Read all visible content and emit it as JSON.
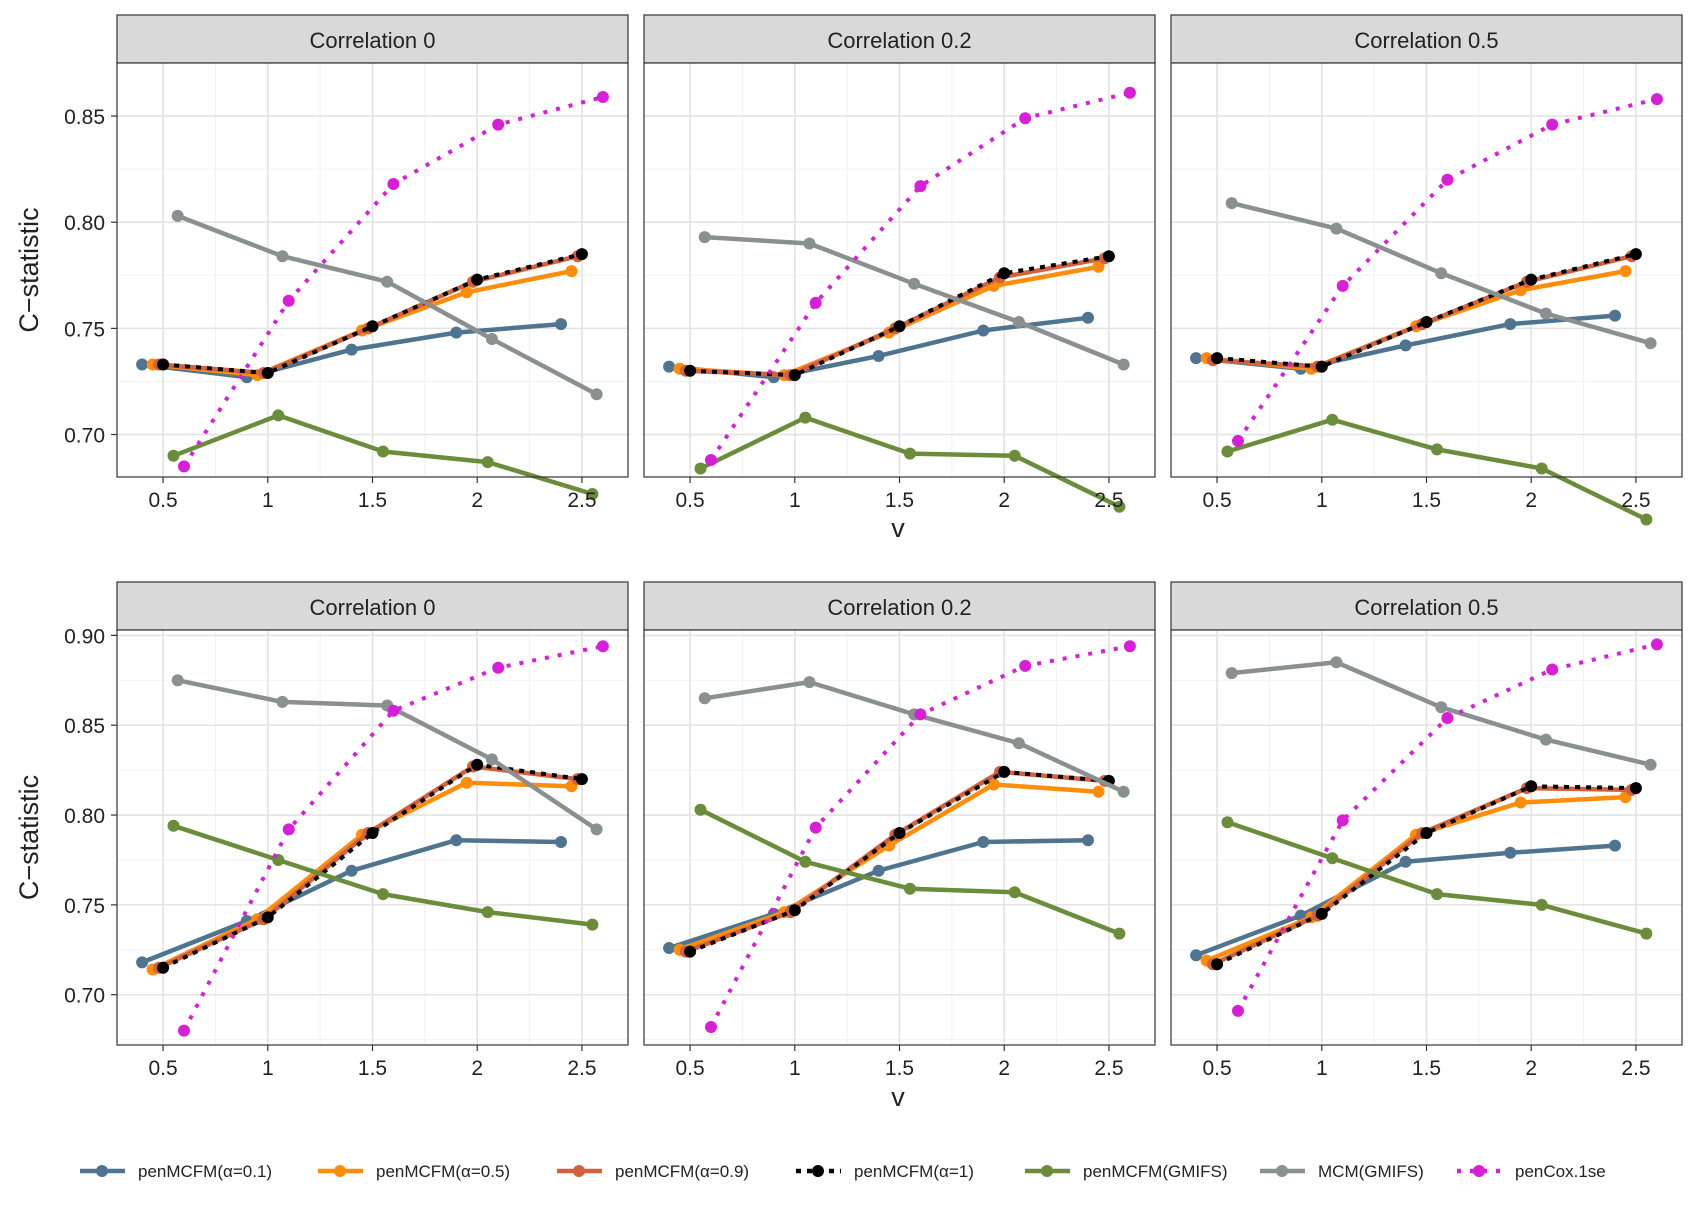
{
  "chart_data": {
    "type": "line",
    "x_values": [
      0.5,
      1,
      1.5,
      2,
      2.5
    ],
    "xlabel": "v",
    "ylabel": "C−statistic",
    "xticks": [
      "0.5",
      "1",
      "1.5",
      "2",
      "2.5"
    ],
    "series_styles": [
      {
        "name": "penMCFM(α=0.1)",
        "color": "#4e7490",
        "dash": "solid"
      },
      {
        "name": "penMCFM(α=0.5)",
        "color": "#ff8c0a",
        "dash": "solid"
      },
      {
        "name": "penMCFM(α=0.9)",
        "color": "#d4613e",
        "dash": "solid"
      },
      {
        "name": "penMCFM(α=1)",
        "color": "#000000",
        "dash": "dotted"
      },
      {
        "name": "penMCFM(GMIFS)",
        "color": "#6b8c3a",
        "dash": "solid"
      },
      {
        "name": "MCM(GMIFS)",
        "color": "#8a8f8f",
        "dash": "solid"
      },
      {
        "name": "penCox.1se",
        "color": "#d81fd8",
        "dash": "dotted"
      }
    ],
    "rows": [
      {
        "ylim": [
          0.68,
          0.875
        ],
        "yticks": [
          "0.70",
          "0.75",
          "0.80",
          "0.85"
        ],
        "panels": [
          {
            "title": "Correlation 0",
            "series": [
              {
                "name": "penMCFM(α=0.1)",
                "x": [
                  0.4,
                  0.9,
                  1.4,
                  1.9,
                  2.4
                ],
                "values": [
                  0.733,
                  0.727,
                  0.74,
                  0.748,
                  0.752
                ]
              },
              {
                "name": "penMCFM(α=0.5)",
                "x": [
                  0.45,
                  0.95,
                  1.45,
                  1.95,
                  2.45
                ],
                "values": [
                  0.733,
                  0.728,
                  0.749,
                  0.767,
                  0.777
                ]
              },
              {
                "name": "penMCFM(α=0.9)",
                "x": [
                  0.48,
                  0.98,
                  1.48,
                  1.98,
                  2.48
                ],
                "values": [
                  0.733,
                  0.729,
                  0.75,
                  0.772,
                  0.784
                ]
              },
              {
                "name": "penMCFM(α=1)",
                "x": [
                  0.5,
                  1.0,
                  1.5,
                  2.0,
                  2.5
                ],
                "values": [
                  0.733,
                  0.729,
                  0.751,
                  0.773,
                  0.785
                ]
              },
              {
                "name": "penMCFM(GMIFS)",
                "x": [
                  0.55,
                  1.05,
                  1.55,
                  2.05,
                  2.55
                ],
                "values": [
                  0.69,
                  0.709,
                  0.692,
                  0.687,
                  0.672
                ]
              },
              {
                "name": "MCM(GMIFS)",
                "x": [
                  0.57,
                  1.07,
                  1.57,
                  2.07,
                  2.57
                ],
                "values": [
                  0.803,
                  0.784,
                  0.772,
                  0.745,
                  0.719
                ]
              },
              {
                "name": "penCox.1se",
                "x": [
                  0.6,
                  1.1,
                  1.6,
                  2.1,
                  2.6
                ],
                "values": [
                  0.685,
                  0.763,
                  0.818,
                  0.846,
                  0.859
                ]
              }
            ]
          },
          {
            "title": "Correlation 0.2",
            "series": [
              {
                "name": "penMCFM(α=0.1)",
                "x": [
                  0.4,
                  0.9,
                  1.4,
                  1.9,
                  2.4
                ],
                "values": [
                  0.732,
                  0.727,
                  0.737,
                  0.749,
                  0.755
                ]
              },
              {
                "name": "penMCFM(α=0.5)",
                "x": [
                  0.45,
                  0.95,
                  1.45,
                  1.95,
                  2.45
                ],
                "values": [
                  0.731,
                  0.728,
                  0.748,
                  0.77,
                  0.779
                ]
              },
              {
                "name": "penMCFM(α=0.9)",
                "x": [
                  0.48,
                  0.98,
                  1.48,
                  1.98,
                  2.48
                ],
                "values": [
                  0.73,
                  0.728,
                  0.75,
                  0.774,
                  0.783
                ]
              },
              {
                "name": "penMCFM(α=1)",
                "x": [
                  0.5,
                  1.0,
                  1.5,
                  2.0,
                  2.5
                ],
                "values": [
                  0.73,
                  0.728,
                  0.751,
                  0.776,
                  0.784
                ]
              },
              {
                "name": "penMCFM(GMIFS)",
                "x": [
                  0.55,
                  1.05,
                  1.55,
                  2.05,
                  2.55
                ],
                "values": [
                  0.684,
                  0.708,
                  0.691,
                  0.69,
                  0.666
                ]
              },
              {
                "name": "MCM(GMIFS)",
                "x": [
                  0.57,
                  1.07,
                  1.57,
                  2.07,
                  2.57
                ],
                "values": [
                  0.793,
                  0.79,
                  0.771,
                  0.753,
                  0.733
                ]
              },
              {
                "name": "penCox.1se",
                "x": [
                  0.6,
                  1.1,
                  1.6,
                  2.1,
                  2.6
                ],
                "values": [
                  0.688,
                  0.762,
                  0.817,
                  0.849,
                  0.861
                ]
              }
            ]
          },
          {
            "title": "Correlation 0.5",
            "series": [
              {
                "name": "penMCFM(α=0.1)",
                "x": [
                  0.4,
                  0.9,
                  1.4,
                  1.9,
                  2.4
                ],
                "values": [
                  0.736,
                  0.731,
                  0.742,
                  0.752,
                  0.756
                ]
              },
              {
                "name": "penMCFM(α=0.5)",
                "x": [
                  0.45,
                  0.95,
                  1.45,
                  1.95,
                  2.45
                ],
                "values": [
                  0.736,
                  0.731,
                  0.751,
                  0.768,
                  0.777
                ]
              },
              {
                "name": "penMCFM(α=0.9)",
                "x": [
                  0.48,
                  0.98,
                  1.48,
                  1.98,
                  2.48
                ],
                "values": [
                  0.735,
                  0.732,
                  0.752,
                  0.772,
                  0.784
                ]
              },
              {
                "name": "penMCFM(α=1)",
                "x": [
                  0.5,
                  1.0,
                  1.5,
                  2.0,
                  2.5
                ],
                "values": [
                  0.736,
                  0.732,
                  0.753,
                  0.773,
                  0.785
                ]
              },
              {
                "name": "penMCFM(GMIFS)",
                "x": [
                  0.55,
                  1.05,
                  1.55,
                  2.05,
                  2.55
                ],
                "values": [
                  0.692,
                  0.707,
                  0.693,
                  0.684,
                  0.66
                ]
              },
              {
                "name": "MCM(GMIFS)",
                "x": [
                  0.57,
                  1.07,
                  1.57,
                  2.07,
                  2.57
                ],
                "values": [
                  0.809,
                  0.797,
                  0.776,
                  0.757,
                  0.743
                ]
              },
              {
                "name": "penCox.1se",
                "x": [
                  0.6,
                  1.1,
                  1.6,
                  2.1,
                  2.6
                ],
                "values": [
                  0.697,
                  0.77,
                  0.82,
                  0.846,
                  0.858
                ]
              }
            ]
          }
        ]
      },
      {
        "ylim": [
          0.672,
          0.903
        ],
        "yticks": [
          "0.70",
          "0.75",
          "0.80",
          "0.85",
          "0.90"
        ],
        "panels": [
          {
            "title": "Correlation 0",
            "series": [
              {
                "name": "penMCFM(α=0.1)",
                "x": [
                  0.4,
                  0.9,
                  1.4,
                  1.9,
                  2.4
                ],
                "values": [
                  0.718,
                  0.741,
                  0.769,
                  0.786,
                  0.785
                ]
              },
              {
                "name": "penMCFM(α=0.5)",
                "x": [
                  0.45,
                  0.95,
                  1.45,
                  1.95,
                  2.45
                ],
                "values": [
                  0.714,
                  0.742,
                  0.789,
                  0.818,
                  0.816
                ]
              },
              {
                "name": "penMCFM(α=0.9)",
                "x": [
                  0.48,
                  0.98,
                  1.48,
                  1.98,
                  2.48
                ],
                "values": [
                  0.715,
                  0.742,
                  0.79,
                  0.827,
                  0.82
                ]
              },
              {
                "name": "penMCFM(α=1)",
                "x": [
                  0.5,
                  1.0,
                  1.5,
                  2.0,
                  2.5
                ],
                "values": [
                  0.715,
                  0.743,
                  0.79,
                  0.828,
                  0.82
                ]
              },
              {
                "name": "penMCFM(GMIFS)",
                "x": [
                  0.55,
                  1.05,
                  1.55,
                  2.05,
                  2.55
                ],
                "values": [
                  0.794,
                  0.775,
                  0.756,
                  0.746,
                  0.739
                ]
              },
              {
                "name": "MCM(GMIFS)",
                "x": [
                  0.57,
                  1.07,
                  1.57,
                  2.07,
                  2.57
                ],
                "values": [
                  0.875,
                  0.863,
                  0.861,
                  0.831,
                  0.792
                ]
              },
              {
                "name": "penCox.1se",
                "x": [
                  0.6,
                  1.1,
                  1.6,
                  2.1,
                  2.6
                ],
                "values": [
                  0.68,
                  0.792,
                  0.858,
                  0.882,
                  0.894
                ]
              }
            ]
          },
          {
            "title": "Correlation 0.2",
            "series": [
              {
                "name": "penMCFM(α=0.1)",
                "x": [
                  0.4,
                  0.9,
                  1.4,
                  1.9,
                  2.4
                ],
                "values": [
                  0.726,
                  0.745,
                  0.769,
                  0.785,
                  0.786
                ]
              },
              {
                "name": "penMCFM(α=0.5)",
                "x": [
                  0.45,
                  0.95,
                  1.45,
                  1.95,
                  2.45
                ],
                "values": [
                  0.725,
                  0.746,
                  0.783,
                  0.817,
                  0.813
                ]
              },
              {
                "name": "penMCFM(α=0.9)",
                "x": [
                  0.48,
                  0.98,
                  1.48,
                  1.98,
                  2.48
                ],
                "values": [
                  0.724,
                  0.746,
                  0.789,
                  0.824,
                  0.819
                ]
              },
              {
                "name": "penMCFM(α=1)",
                "x": [
                  0.5,
                  1.0,
                  1.5,
                  2.0,
                  2.5
                ],
                "values": [
                  0.724,
                  0.747,
                  0.79,
                  0.824,
                  0.819
                ]
              },
              {
                "name": "penMCFM(GMIFS)",
                "x": [
                  0.55,
                  1.05,
                  1.55,
                  2.05,
                  2.55
                ],
                "values": [
                  0.803,
                  0.774,
                  0.759,
                  0.757,
                  0.734
                ]
              },
              {
                "name": "MCM(GMIFS)",
                "x": [
                  0.57,
                  1.07,
                  1.57,
                  2.07,
                  2.57
                ],
                "values": [
                  0.865,
                  0.874,
                  0.856,
                  0.84,
                  0.813
                ]
              },
              {
                "name": "penCox.1se",
                "x": [
                  0.6,
                  1.1,
                  1.6,
                  2.1,
                  2.6
                ],
                "values": [
                  0.682,
                  0.793,
                  0.856,
                  0.883,
                  0.894
                ]
              }
            ]
          },
          {
            "title": "Correlation 0.5",
            "series": [
              {
                "name": "penMCFM(α=0.1)",
                "x": [
                  0.4,
                  0.9,
                  1.4,
                  1.9,
                  2.4
                ],
                "values": [
                  0.722,
                  0.744,
                  0.774,
                  0.779,
                  0.783
                ]
              },
              {
                "name": "penMCFM(α=0.5)",
                "x": [
                  0.45,
                  0.95,
                  1.45,
                  1.95,
                  2.45
                ],
                "values": [
                  0.719,
                  0.743,
                  0.789,
                  0.807,
                  0.81
                ]
              },
              {
                "name": "penMCFM(α=0.9)",
                "x": [
                  0.48,
                  0.98,
                  1.48,
                  1.98,
                  2.48
                ],
                "values": [
                  0.717,
                  0.744,
                  0.79,
                  0.815,
                  0.814
                ]
              },
              {
                "name": "penMCFM(α=1)",
                "x": [
                  0.5,
                  1.0,
                  1.5,
                  2.0,
                  2.5
                ],
                "values": [
                  0.717,
                  0.745,
                  0.79,
                  0.816,
                  0.815
                ]
              },
              {
                "name": "penMCFM(GMIFS)",
                "x": [
                  0.55,
                  1.05,
                  1.55,
                  2.05,
                  2.55
                ],
                "values": [
                  0.796,
                  0.776,
                  0.756,
                  0.75,
                  0.734
                ]
              },
              {
                "name": "MCM(GMIFS)",
                "x": [
                  0.57,
                  1.07,
                  1.57,
                  2.07,
                  2.57
                ],
                "values": [
                  0.879,
                  0.885,
                  0.86,
                  0.842,
                  0.828
                ]
              },
              {
                "name": "penCox.1se",
                "x": [
                  0.6,
                  1.1,
                  1.6,
                  2.1,
                  2.6
                ],
                "values": [
                  0.691,
                  0.797,
                  0.854,
                  0.881,
                  0.895
                ]
              }
            ]
          }
        ]
      }
    ]
  }
}
